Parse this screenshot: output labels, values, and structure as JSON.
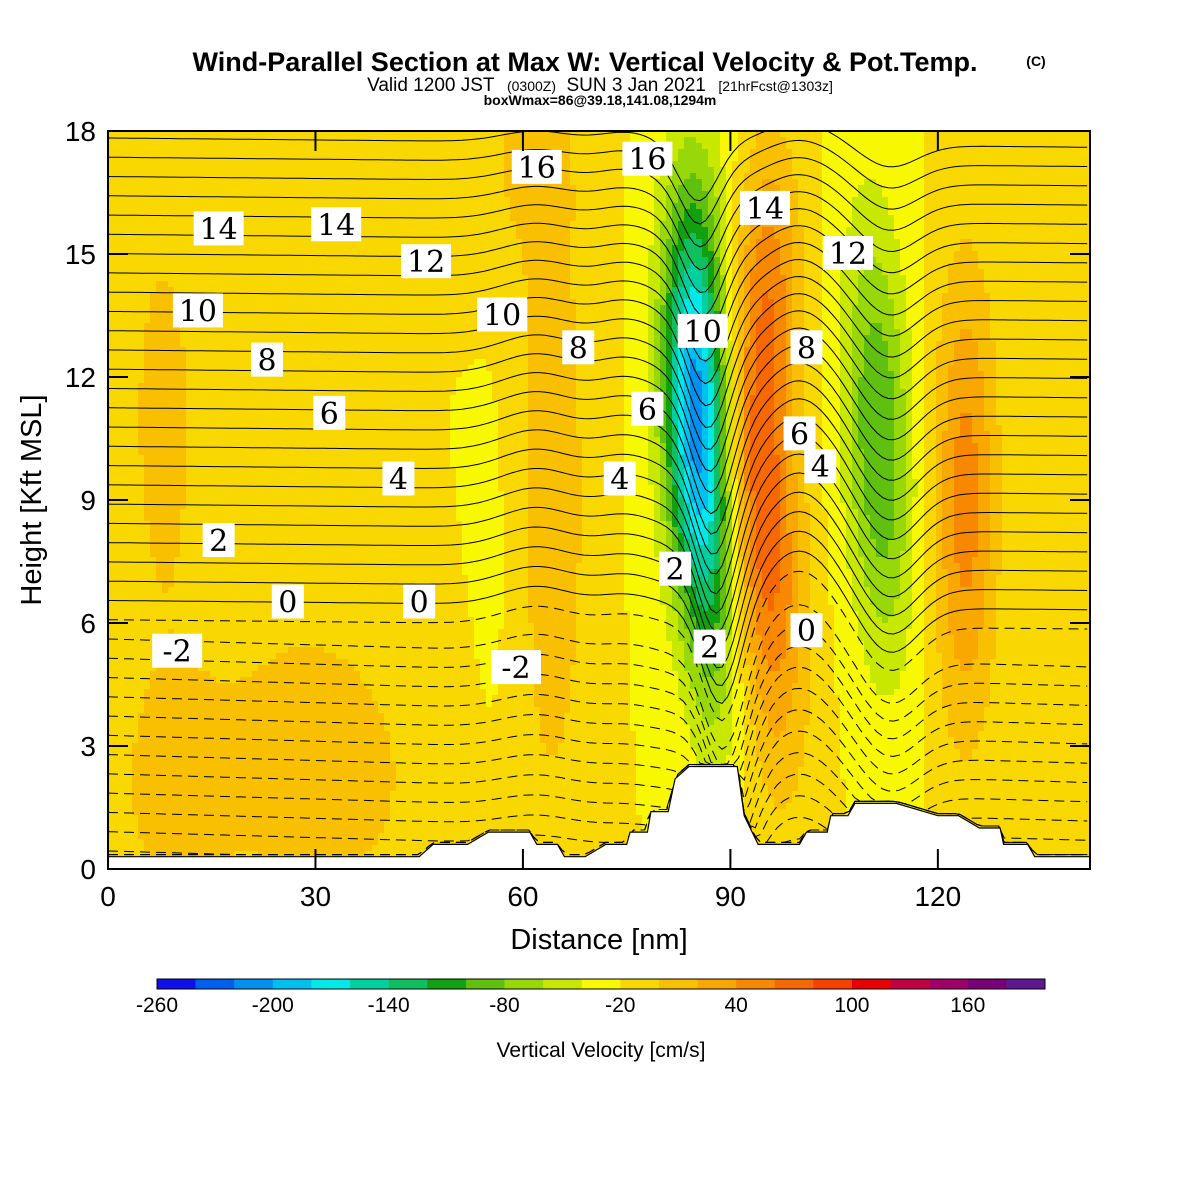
{
  "chart_data": {
    "type": "heatmap",
    "title": "Wind-Parallel Section at Max W: Vertical Velocity & Pot.Temp.",
    "copyright": "(C)",
    "subtitle": {
      "valid_prefix": "Valid 1200 JST",
      "utc": "(0300Z)",
      "date": "SUN 3 Jan 2021",
      "forecast": "[21hrFcst@1303z]"
    },
    "info": "boxWmax=86@39.18,141.08,1294m",
    "xlabel": "Distance [nm]",
    "ylabel": "Height [Kft MSL]",
    "xlim": [
      0,
      142
    ],
    "ylim": [
      0,
      18
    ],
    "x_ticks": [
      "0",
      "30",
      "60",
      "90",
      "120"
    ],
    "y_ticks": [
      "0",
      "3",
      "6",
      "9",
      "12",
      "15",
      "18"
    ],
    "colorbar": {
      "label": "Vertical Velocity [cm/s]",
      "tick_labels": [
        "-260",
        "-200",
        "-140",
        "-80",
        "-20",
        "40",
        "100",
        "160"
      ],
      "colors": [
        "#1010ee",
        "#0060ee",
        "#0090f0",
        "#00c0f0",
        "#00e8e8",
        "#00d0a0",
        "#10c060",
        "#10a010",
        "#60c010",
        "#98d808",
        "#c8e800",
        "#f8f800",
        "#f8d800",
        "#f8c000",
        "#f8a800",
        "#f88800",
        "#f86800",
        "#f84000",
        "#e80000",
        "#c00040",
        "#a00068",
        "#7a0078",
        "#601890"
      ]
    },
    "w_features": [
      {
        "kind": "downdraft",
        "x": 86,
        "z_center": 10,
        "peak_cm_s": -150
      },
      {
        "kind": "updraft",
        "x": 95,
        "z_center": 8,
        "peak_cm_s": 90
      },
      {
        "kind": "downdraft",
        "x": 112,
        "z_center": 10,
        "peak_cm_s": -80
      },
      {
        "kind": "updraft",
        "x": 125,
        "z_center": 9,
        "peak_cm_s": 70
      }
    ],
    "contour_labels": [
      {
        "text": "16",
        "x": 62,
        "z": 17.1
      },
      {
        "text": "16",
        "x": 78,
        "z": 17.3
      },
      {
        "text": "14",
        "x": 16,
        "z": 15.6
      },
      {
        "text": "14",
        "x": 33,
        "z": 15.7
      },
      {
        "text": "14",
        "x": 95,
        "z": 16.1
      },
      {
        "text": "12",
        "x": 46,
        "z": 14.8
      },
      {
        "text": "12",
        "x": 107,
        "z": 15.0
      },
      {
        "text": "10",
        "x": 13,
        "z": 13.6
      },
      {
        "text": "10",
        "x": 57,
        "z": 13.5
      },
      {
        "text": "10",
        "x": 86,
        "z": 13.1
      },
      {
        "text": "8",
        "x": 23,
        "z": 12.4
      },
      {
        "text": "8",
        "x": 68,
        "z": 12.7
      },
      {
        "text": "8",
        "x": 101,
        "z": 12.7
      },
      {
        "text": "6",
        "x": 32,
        "z": 11.1
      },
      {
        "text": "6",
        "x": 78,
        "z": 11.2
      },
      {
        "text": "6",
        "x": 100,
        "z": 10.6
      },
      {
        "text": "4",
        "x": 42,
        "z": 9.5
      },
      {
        "text": "4",
        "x": 74,
        "z": 9.5
      },
      {
        "text": "4",
        "x": 103,
        "z": 9.8
      },
      {
        "text": "2",
        "x": 16,
        "z": 8.0
      },
      {
        "text": "2",
        "x": 82,
        "z": 7.3
      },
      {
        "text": "2",
        "x": 87,
        "z": 5.4
      },
      {
        "text": "0",
        "x": 26,
        "z": 6.5
      },
      {
        "text": "0",
        "x": 45,
        "z": 6.5
      },
      {
        "text": "0",
        "x": 101,
        "z": 5.8
      },
      {
        "text": "-2",
        "x": 10,
        "z": 5.3
      },
      {
        "text": "-2",
        "x": 59,
        "z": 4.9
      }
    ],
    "terrain_kft": {
      "x": [
        0,
        45,
        47,
        52,
        55,
        61,
        62,
        65,
        66,
        69,
        72,
        75,
        75.5,
        78,
        78.5,
        81,
        82,
        84,
        91,
        92,
        94,
        100,
        101,
        104,
        104.5,
        107,
        108,
        114,
        120,
        123,
        126,
        129,
        129.5,
        133,
        134,
        142
      ],
      "z": [
        0.3,
        0.3,
        0.6,
        0.6,
        0.9,
        0.9,
        0.6,
        0.6,
        0.3,
        0.3,
        0.6,
        0.6,
        0.9,
        0.9,
        1.4,
        1.4,
        2.2,
        2.5,
        2.5,
        1.3,
        0.6,
        0.6,
        0.9,
        0.9,
        1.3,
        1.3,
        1.6,
        1.6,
        1.3,
        1.3,
        1.0,
        1.0,
        0.6,
        0.6,
        0.3,
        0.3
      ]
    },
    "grid": false,
    "legend": "colorbar-bottom"
  }
}
